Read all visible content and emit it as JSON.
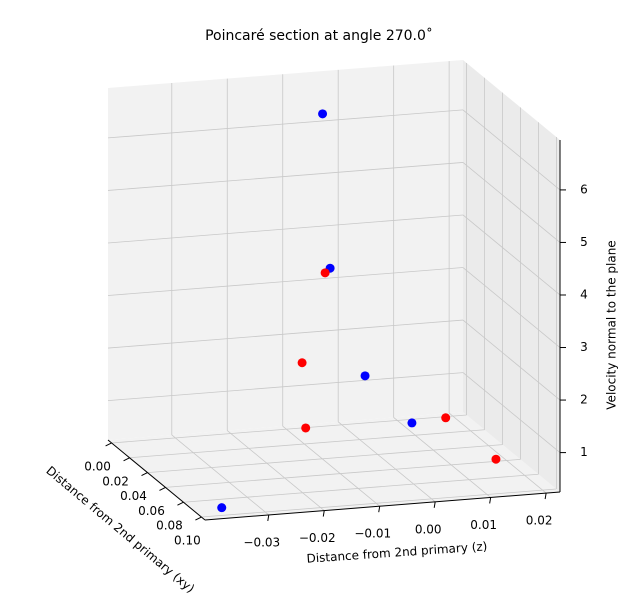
{
  "chart_data": {
    "type": "scatter3d",
    "title": "Poincaré section at angle 270.0˚",
    "xlabel": "Distance from 2nd primary (xy)",
    "ylabel": "Distance from 2nd primary (z)",
    "zlabel": "Velocity normal to the plane",
    "xlim": [
      -0.004,
      0.104
    ],
    "xticks": [
      {
        "value": 0,
        "label": "0.00"
      },
      {
        "value": 0.02,
        "label": "0.02"
      },
      {
        "value": 0.04,
        "label": "0.04"
      },
      {
        "value": 0.06,
        "label": "0.06"
      },
      {
        "value": 0.08,
        "label": "0.08"
      },
      {
        "value": 0.1,
        "label": "0.10"
      }
    ],
    "ylim": [
      -0.0415,
      0.0225
    ],
    "yticks": [
      {
        "value": -0.03,
        "label": "−0.03"
      },
      {
        "value": -0.02,
        "label": "−0.02"
      },
      {
        "value": -0.01,
        "label": "−0.01"
      },
      {
        "value": 0,
        "label": "0.00"
      },
      {
        "value": 0.01,
        "label": "0.01"
      },
      {
        "value": 0.02,
        "label": "0.02"
      }
    ],
    "zlim": [
      0.25,
      6.95
    ],
    "zticks": [
      1,
      2,
      3,
      4,
      5,
      6
    ],
    "grid": true,
    "series": [
      {
        "color": "#0000ff",
        "x": [
          0.028,
          0.05,
          0.05,
          0.0608,
          0.093
        ],
        "y": [
          -0.008,
          -0.0102,
          -0.0039,
          0.0028,
          -0.0367
        ],
        "z": [
          6.63,
          4.02,
          1.92,
          1.12,
          0.29
        ]
      },
      {
        "color": "#ff0000",
        "x": [
          0.05,
          0.0608,
          0.0716,
          0.028,
          0.0716
        ],
        "y": [
          -0.0111,
          -0.017,
          -0.0181,
          0.0142,
          0.0162
        ],
        "z": [
          3.94,
          2.43,
          1.35,
          0.66,
          0.47
        ]
      }
    ]
  }
}
